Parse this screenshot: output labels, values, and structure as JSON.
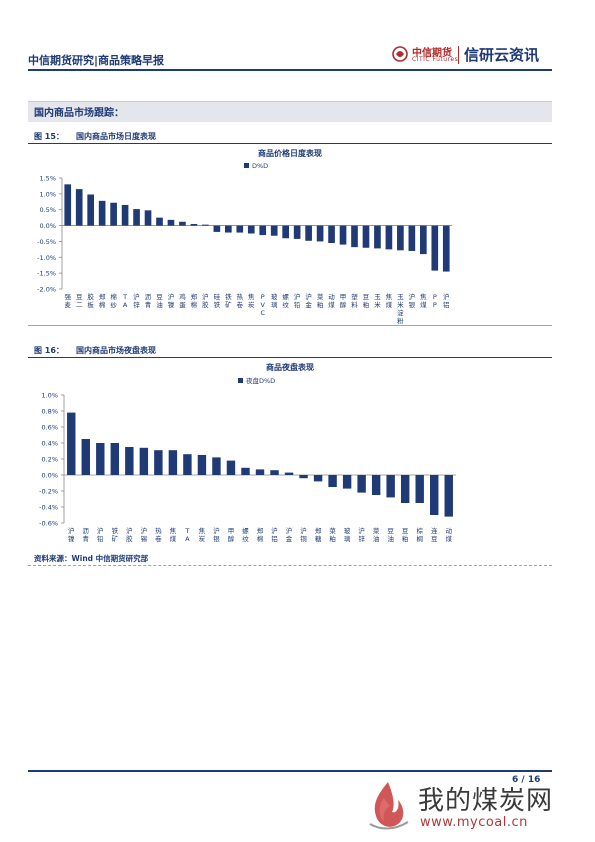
{
  "header": {
    "title": "中信期货研究|商品策略早报",
    "logo_cn": "中信期货",
    "logo_en": "CITIC Futures",
    "logo_brand": "信研云资讯"
  },
  "section": {
    "title": "国内商品市场跟踪："
  },
  "figures": [
    {
      "number": "图 15：",
      "title": "国内商品市场日度表现"
    },
    {
      "number": "图 16：",
      "title": "国内商品市场夜盘表现"
    }
  ],
  "colors": {
    "bar": "#1f3a75",
    "accent_red": "#b22a2a"
  },
  "chart_data": [
    {
      "type": "bar",
      "title": "商品价格日度表现",
      "legend": "D%D",
      "ylim": [
        -2.0,
        1.5
      ],
      "yticks": [
        "1.5%",
        "1.0%",
        "0.5%",
        "0.0%",
        "-0.5%",
        "-1.0%",
        "-1.5%",
        "-2.0%"
      ],
      "categories": [
        "强麦",
        "豆二",
        "胶板",
        "郑棉",
        "棉纱",
        "TA",
        "沪锌",
        "沥青",
        "豆油",
        "沪镍",
        "鸡蛋",
        "郑棉",
        "沪胶",
        "硅铁",
        "铁矿",
        "热卷",
        "焦炭",
        "PVC",
        "玻璃",
        "螺纹",
        "沪铅",
        "沪金",
        "菜粕",
        "动煤",
        "甲醇",
        "塑料",
        "豆粕",
        "玉米",
        "焦煤",
        "玉米淀粉",
        "沪银",
        "焦煤",
        "PP",
        "沪铝"
      ],
      "values": [
        1.3,
        1.15,
        0.98,
        0.78,
        0.72,
        0.65,
        0.52,
        0.48,
        0.25,
        0.18,
        0.12,
        0.05,
        0.03,
        -0.2,
        -0.22,
        -0.22,
        -0.25,
        -0.3,
        -0.32,
        -0.4,
        -0.42,
        -0.48,
        -0.5,
        -0.55,
        -0.6,
        -0.68,
        -0.7,
        -0.72,
        -0.75,
        -0.78,
        -0.8,
        -0.9,
        -1.42,
        -1.45
      ]
    },
    {
      "type": "bar",
      "title": "商品夜盘表现",
      "legend": "夜盘D%D",
      "ylim": [
        -0.6,
        1.0
      ],
      "yticks": [
        "1.0%",
        "0.8%",
        "0.6%",
        "0.4%",
        "0.2%",
        "0.0%",
        "-0.2%",
        "-0.4%",
        "-0.6%"
      ],
      "categories": [
        "沪镍",
        "沥青",
        "沪铅",
        "铁矿",
        "沪胶",
        "沪锡",
        "热卷",
        "焦煤",
        "TA",
        "焦炭",
        "沪银",
        "甲醇",
        "螺纹",
        "郑棉",
        "沪铝",
        "沪金",
        "沪铜",
        "郑糖",
        "菜粕",
        "玻璃",
        "沪锌",
        "菜油",
        "豆油",
        "豆粕",
        "棕榈",
        "连豆",
        "动煤"
      ],
      "values": [
        0.78,
        0.45,
        0.4,
        0.4,
        0.35,
        0.34,
        0.31,
        0.31,
        0.26,
        0.25,
        0.22,
        0.18,
        0.09,
        0.07,
        0.06,
        0.03,
        -0.04,
        -0.08,
        -0.15,
        -0.17,
        -0.22,
        -0.25,
        -0.28,
        -0.35,
        -0.35,
        -0.5,
        -0.52
      ]
    }
  ],
  "source": "资料来源：Wind  中信期货研究部",
  "footer": {
    "page": "6 / 16"
  },
  "watermark": {
    "text": "我的煤炭网",
    "url": "www.mycoal.cn"
  }
}
